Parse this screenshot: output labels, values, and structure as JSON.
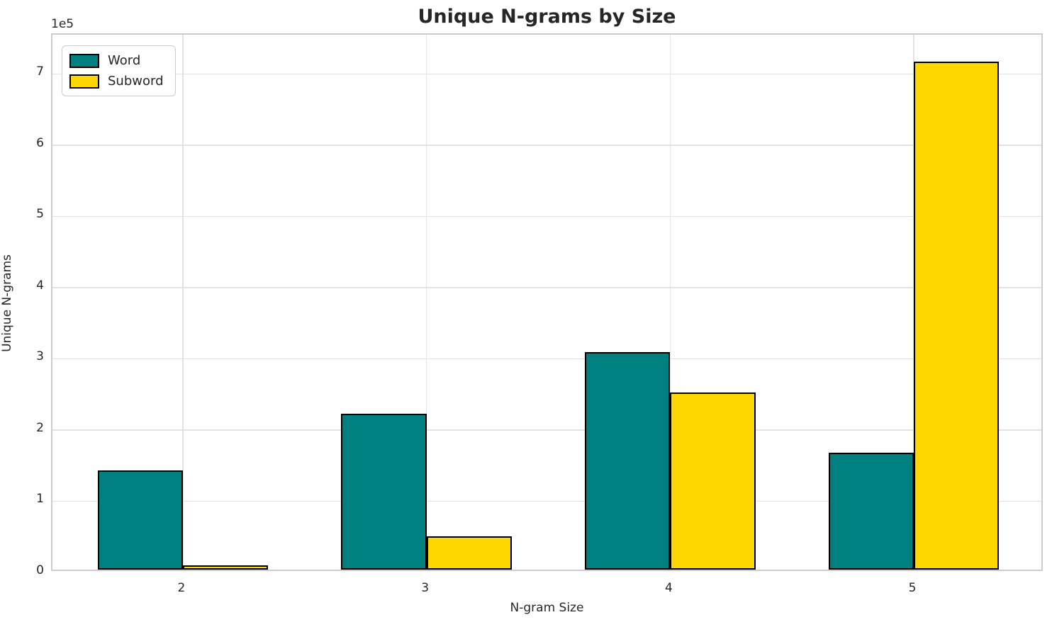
{
  "chart_data": {
    "type": "bar",
    "title": "Unique N-grams by Size",
    "xlabel": "N-gram Size",
    "ylabel": "Unique N-grams",
    "offset_text": "1e5",
    "categories": [
      "2",
      "3",
      "4",
      "5"
    ],
    "series": [
      {
        "name": "Word",
        "color": "#008080",
        "values": [
          139000,
          219000,
          305000,
          164000
        ]
      },
      {
        "name": "Subword",
        "color": "#FFD700",
        "values": [
          6000,
          47000,
          249000,
          713000
        ]
      }
    ],
    "bar_edge_color": "#000000",
    "bar_width_units": 0.35,
    "ylim": [
      0,
      755000
    ],
    "xlim": [
      -0.535,
      3.535
    ],
    "yticks": [
      0,
      100000,
      200000,
      300000,
      400000,
      500000,
      600000,
      700000
    ],
    "ytick_labels": [
      "0",
      "1",
      "2",
      "3",
      "4",
      "5",
      "6",
      "7"
    ],
    "grid": true,
    "grid_color": "#e2e2e2",
    "spine_color": "#cccccc",
    "text_color": "#262626",
    "legend_position": "upper left"
  }
}
